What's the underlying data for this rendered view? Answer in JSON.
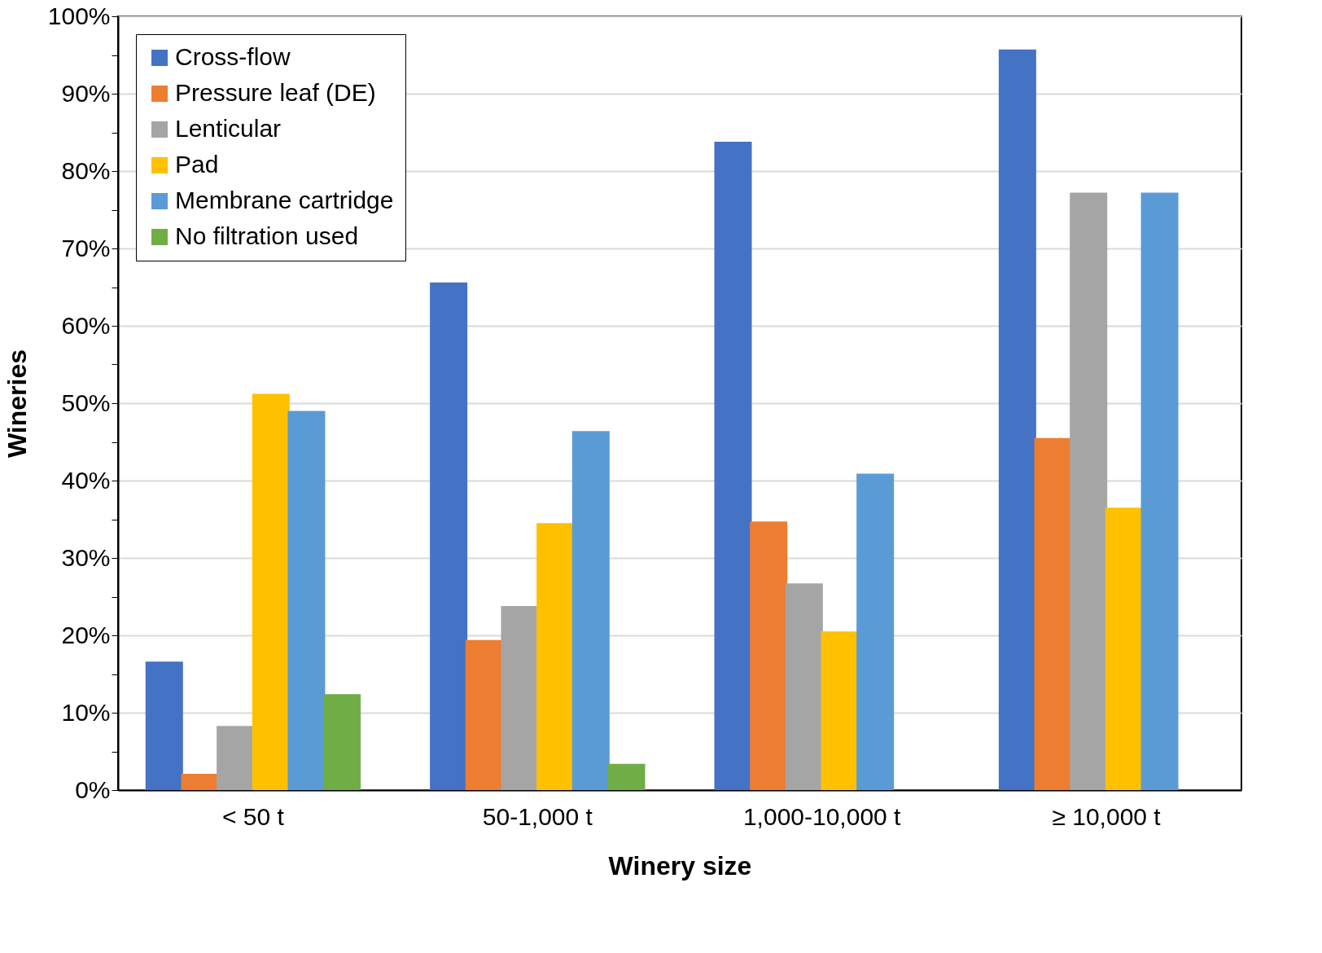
{
  "chart_data": {
    "type": "bar",
    "xlabel": "Winery size",
    "ylabel": "Wineries",
    "categories": [
      "< 50 t",
      "50-1,000 t",
      "1,000-10,000 t",
      "≥ 10,000 t"
    ],
    "series": [
      {
        "name": "Cross-flow",
        "color": "#4472c4",
        "values": [
          16.6,
          65.6,
          83.8,
          95.7
        ]
      },
      {
        "name": "Pressure leaf (DE)",
        "color": "#ed7d31",
        "values": [
          2.1,
          19.4,
          34.7,
          45.5
        ]
      },
      {
        "name": "Lenticular",
        "color": "#a5a5a5",
        "values": [
          8.3,
          23.8,
          26.7,
          77.2
        ]
      },
      {
        "name": "Pad",
        "color": "#ffc000",
        "values": [
          51.2,
          34.5,
          20.5,
          36.5
        ]
      },
      {
        "name": "Membrane cartridge",
        "color": "#5b9bd5",
        "values": [
          49.0,
          46.4,
          40.9,
          77.2
        ]
      },
      {
        "name": "No filtration used",
        "color": "#70ad47",
        "values": [
          12.4,
          3.4,
          null,
          null
        ]
      }
    ],
    "ylim": [
      0,
      100
    ],
    "yticks": [
      {
        "value": 0,
        "label": "0%"
      },
      {
        "value": 5,
        "label": null
      },
      {
        "value": 10,
        "label": "10%"
      },
      {
        "value": 15,
        "label": null
      },
      {
        "value": 20,
        "label": "20%"
      },
      {
        "value": 25,
        "label": null
      },
      {
        "value": 30,
        "label": "30%"
      },
      {
        "value": 35,
        "label": null
      },
      {
        "value": 40,
        "label": "40%"
      },
      {
        "value": 45,
        "label": null
      },
      {
        "value": 50,
        "label": "50%"
      },
      {
        "value": 55,
        "label": null
      },
      {
        "value": 60,
        "label": "60%"
      },
      {
        "value": 65,
        "label": null
      },
      {
        "value": 70,
        "label": "70%"
      },
      {
        "value": 75,
        "label": null
      },
      {
        "value": 80,
        "label": "80%"
      },
      {
        "value": 85,
        "label": null
      },
      {
        "value": 90,
        "label": "90%"
      },
      {
        "value": 95,
        "label": null
      },
      {
        "value": 100,
        "label": "100%"
      }
    ],
    "grid": "y",
    "legend": "top left"
  }
}
